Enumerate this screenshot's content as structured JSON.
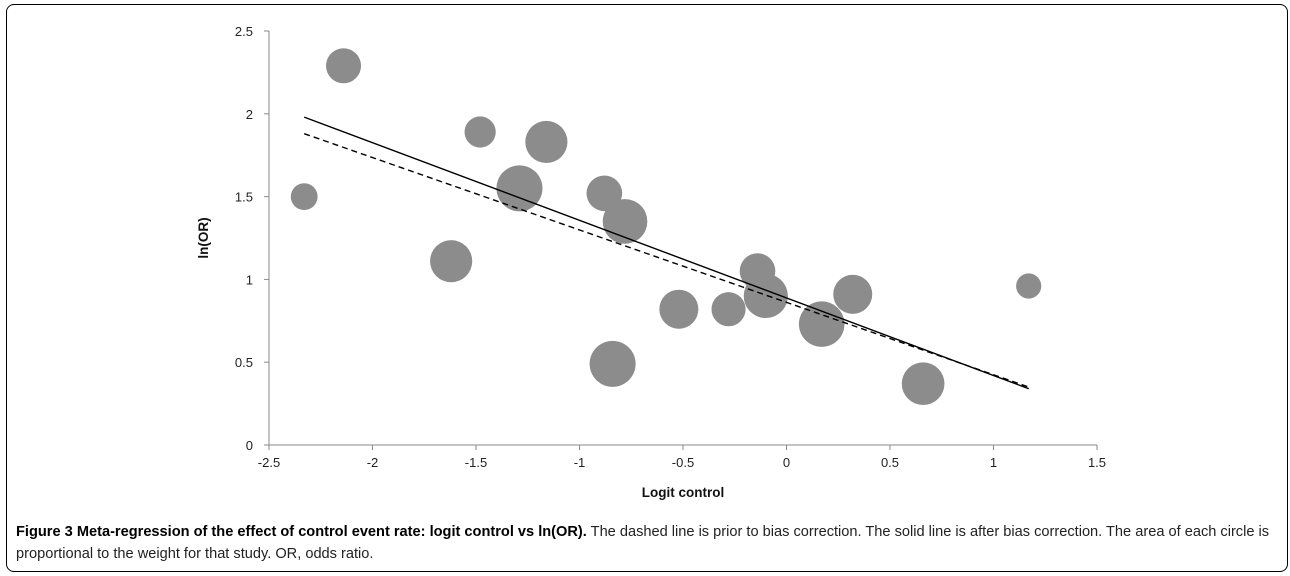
{
  "chart_data": {
    "type": "scatter",
    "title": "",
    "xlabel": "Logit control",
    "ylabel": "ln(OR)",
    "xlim": [
      -2.5,
      1.5
    ],
    "ylim": [
      0,
      2.5
    ],
    "xticks": [
      "-2.5",
      "-2",
      "-1.5",
      "-1",
      "-0.5",
      "0",
      "0.5",
      "1",
      "1.5"
    ],
    "yticks": [
      "0",
      "0.5",
      "1",
      "1.5",
      "2",
      "2.5"
    ],
    "grid": false,
    "marker_color": "#8c8c8c",
    "points": [
      {
        "x": -2.33,
        "y": 1.5,
        "weight": 0.34
      },
      {
        "x": -2.14,
        "y": 2.29,
        "weight": 0.58
      },
      {
        "x": -1.62,
        "y": 1.11,
        "weight": 0.84
      },
      {
        "x": -1.48,
        "y": 1.89,
        "weight": 0.46
      },
      {
        "x": -1.29,
        "y": 1.55,
        "weight": 1.0
      },
      {
        "x": -1.16,
        "y": 1.83,
        "weight": 0.84
      },
      {
        "x": -0.88,
        "y": 1.52,
        "weight": 0.6
      },
      {
        "x": -0.84,
        "y": 0.49,
        "weight": 1.0
      },
      {
        "x": -0.78,
        "y": 1.35,
        "weight": 0.94
      },
      {
        "x": -0.52,
        "y": 0.82,
        "weight": 0.72
      },
      {
        "x": -0.28,
        "y": 0.82,
        "weight": 0.55
      },
      {
        "x": -0.14,
        "y": 1.05,
        "weight": 0.6
      },
      {
        "x": -0.1,
        "y": 0.9,
        "weight": 0.92
      },
      {
        "x": 0.17,
        "y": 0.73,
        "weight": 0.98
      },
      {
        "x": 0.32,
        "y": 0.91,
        "weight": 0.72
      },
      {
        "x": 0.66,
        "y": 0.37,
        "weight": 0.86
      },
      {
        "x": 1.17,
        "y": 0.96,
        "weight": 0.3
      }
    ],
    "lines": [
      {
        "style": "solid",
        "x": [
          -2.33,
          1.17
        ],
        "y": [
          1.98,
          0.34
        ]
      },
      {
        "style": "dashed",
        "x": [
          -2.33,
          1.17
        ],
        "y": [
          1.88,
          0.35
        ]
      }
    ]
  },
  "caption": {
    "label": "Figure 3 Meta-regression of the effect of control event rate: logit control vs ln(OR).",
    "text": "The dashed line is prior to bias correction. The solid line is after bias correction. The area of each circle is proportional to the weight for that study. OR, odds ratio."
  }
}
